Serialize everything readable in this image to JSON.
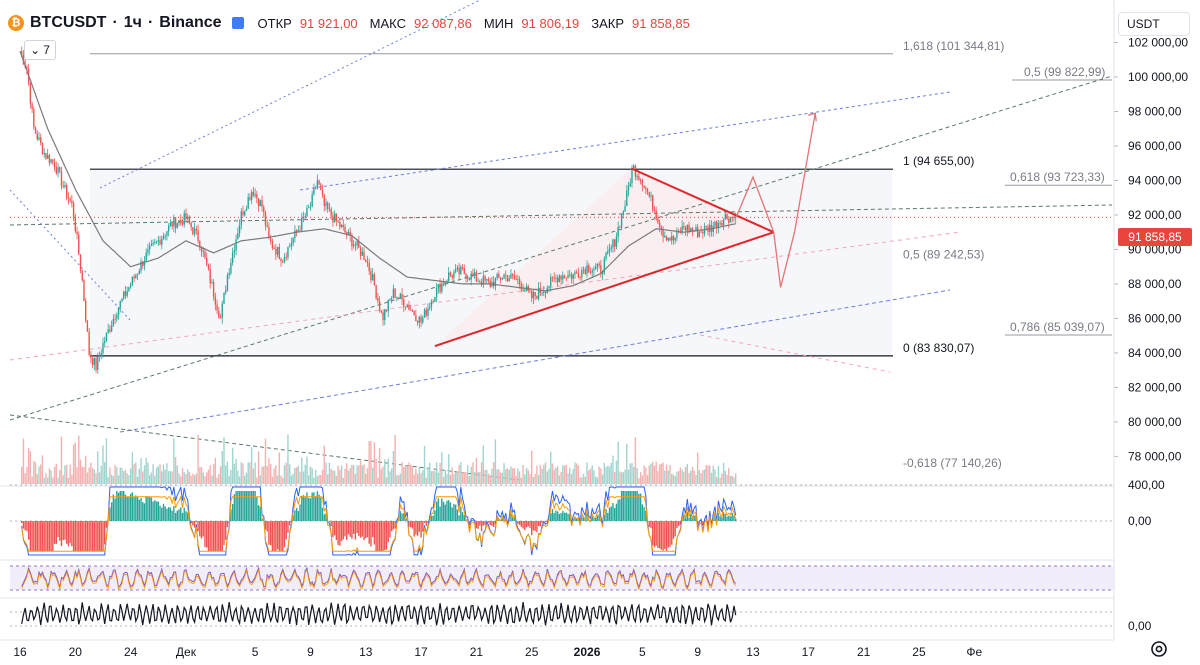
{
  "header": {
    "symbol": "BTCUSDT",
    "separator1": "·",
    "interval": "1ч",
    "separator2": "·",
    "exchange": "Binance",
    "open_label": "ОТКР",
    "open_value": "91 921,00",
    "high_label": "МАКС",
    "high_value": "92 087,86",
    "low_label": "МИН",
    "low_value": "91 806,19",
    "close_label": "ЗАКР",
    "close_value": "91 858,85",
    "indicators_count": "7"
  },
  "price_scale": {
    "currency": "USDT",
    "last_price_label": "91 858,85",
    "last_price_color": "#e8453c"
  },
  "chart_data": {
    "type": "candlestick",
    "symbol": "BTCUSDT",
    "timeframe": "1h",
    "exchange": "Binance",
    "ohlc_last": {
      "open": 91921.0,
      "high": 92087.86,
      "low": 91806.19,
      "close": 91858.85
    },
    "y_range": [
      76400,
      104000
    ],
    "y_ticks": [
      "102 000,00",
      "100 000,00",
      "98 000,00",
      "96 000,00",
      "94 000,00",
      "92 000,00",
      "90 000,00",
      "88 000,00",
      "86 000,00",
      "84 000,00",
      "82 000,00",
      "80 000,00",
      "78 000,00"
    ],
    "y_tick_values": [
      102000,
      100000,
      98000,
      96000,
      94000,
      92000,
      90000,
      88000,
      86000,
      84000,
      82000,
      80000,
      78000
    ],
    "x_ticks": [
      "16",
      "20",
      "24",
      "Дек",
      "5",
      "9",
      "13",
      "17",
      "21",
      "25",
      "2026",
      "5",
      "9",
      "13",
      "17",
      "21",
      "25",
      "Фе"
    ],
    "x_tick_index": [
      0,
      4,
      8,
      12,
      17,
      21,
      25,
      29,
      33,
      37,
      41,
      45,
      49,
      53,
      57,
      61,
      65,
      69
    ],
    "fib_levels": [
      {
        "label": "1,618 (101 344,81)",
        "value": 101344.81
      },
      {
        "label": "0,5 (99 822,99)",
        "value": 99822.99
      },
      {
        "label": "1 (94 655,00)",
        "value": 94655.0
      },
      {
        "label": "0,618 (93 723,33)",
        "value": 93723.33
      },
      {
        "label": "0,5 (89 242,53)",
        "value": 89242.53
      },
      {
        "label": "0,786 (85 039,07)",
        "value": 85039.07
      },
      {
        "label": "0 (83 830,07)",
        "value": 83830.07
      },
      {
        "label": "-0,618 (77 140,26)",
        "value": 77140.26
      }
    ],
    "last_close": 91858.85,
    "anchors": [
      [
        0,
        101500
      ],
      [
        0.5,
        100500
      ],
      [
        1,
        97000
      ],
      [
        1.8,
        95500
      ],
      [
        2.5,
        95000
      ],
      [
        3.2,
        93500
      ],
      [
        3.8,
        92500
      ],
      [
        4.5,
        88200
      ],
      [
        5,
        84000
      ],
      [
        5.5,
        83200
      ],
      [
        6,
        84500
      ],
      [
        7,
        86500
      ],
      [
        8,
        88000
      ],
      [
        9,
        89500
      ],
      [
        10,
        90500
      ],
      [
        11,
        91500
      ],
      [
        12,
        91800
      ],
      [
        13,
        90500
      ],
      [
        14,
        87500
      ],
      [
        14.5,
        86000
      ],
      [
        15,
        88500
      ],
      [
        16,
        92000
      ],
      [
        16.8,
        93500
      ],
      [
        17.5,
        92500
      ],
      [
        18,
        90500
      ],
      [
        19,
        89500
      ],
      [
        20,
        91000
      ],
      [
        21,
        92500
      ],
      [
        21.5,
        94000
      ],
      [
        22,
        92500
      ],
      [
        23,
        91500
      ],
      [
        24,
        90500
      ],
      [
        25,
        89500
      ],
      [
        25.6,
        88000
      ],
      [
        26.2,
        86000
      ],
      [
        27,
        87500
      ],
      [
        28,
        86800
      ],
      [
        29,
        85800
      ],
      [
        30,
        87500
      ],
      [
        31,
        88500
      ],
      [
        32,
        88700
      ],
      [
        33,
        88300
      ],
      [
        34,
        88000
      ],
      [
        35,
        88500
      ],
      [
        36,
        88200
      ],
      [
        37,
        87200
      ],
      [
        38,
        87800
      ],
      [
        39,
        88500
      ],
      [
        40,
        88500
      ],
      [
        41,
        89000
      ],
      [
        42,
        88800
      ],
      [
        43,
        90500
      ],
      [
        43.8,
        92800
      ],
      [
        44.3,
        94800
      ],
      [
        45,
        94000
      ],
      [
        45.8,
        92500
      ],
      [
        46.5,
        91000
      ],
      [
        47.2,
        90500
      ],
      [
        48,
        91300
      ],
      [
        49,
        91000
      ],
      [
        50,
        91300
      ],
      [
        51,
        91900
      ],
      [
        51.8,
        91859
      ]
    ],
    "ma_anchors": [
      [
        0,
        101500
      ],
      [
        2,
        97000
      ],
      [
        4,
        93500
      ],
      [
        6,
        90500
      ],
      [
        8,
        89000
      ],
      [
        10,
        89500
      ],
      [
        12,
        90500
      ],
      [
        14,
        89800
      ],
      [
        16,
        90500
      ],
      [
        18,
        90700
      ],
      [
        20,
        91000
      ],
      [
        22,
        91200
      ],
      [
        24,
        90800
      ],
      [
        26,
        89500
      ],
      [
        28,
        88400
      ],
      [
        30,
        88200
      ],
      [
        32,
        88000
      ],
      [
        34,
        88000
      ],
      [
        36,
        87800
      ],
      [
        38,
        87600
      ],
      [
        40,
        87900
      ],
      [
        42,
        88600
      ],
      [
        44,
        90200
      ],
      [
        46,
        91200
      ],
      [
        48,
        91000
      ],
      [
        50,
        91200
      ],
      [
        51.8,
        91500
      ]
    ],
    "triangle": {
      "apex": [
        54.5,
        91000
      ],
      "upper_start": [
        44.2,
        94700
      ],
      "lower_start": [
        30,
        84400
      ]
    },
    "projection": [
      [
        51.8,
        91900
      ],
      [
        53,
        94200
      ],
      [
        54.5,
        91000
      ],
      [
        55,
        87800
      ],
      [
        56,
        91000
      ],
      [
        57.5,
        97900
      ]
    ],
    "osc1_ticks": [
      "400,00",
      "0,00"
    ],
    "osc1_tick_values": [
      400,
      0
    ],
    "osc3_ticks": [
      "0,00"
    ],
    "osc3_tick_values": [
      0
    ],
    "series_colors": {
      "up": "#26a69a",
      "down": "#ef5350",
      "ma": "#7a7a7a",
      "triangle": "#e0252a",
      "macd": "#2962ff",
      "signal": "#ff9800",
      "stoch": "#7e57c2"
    }
  }
}
